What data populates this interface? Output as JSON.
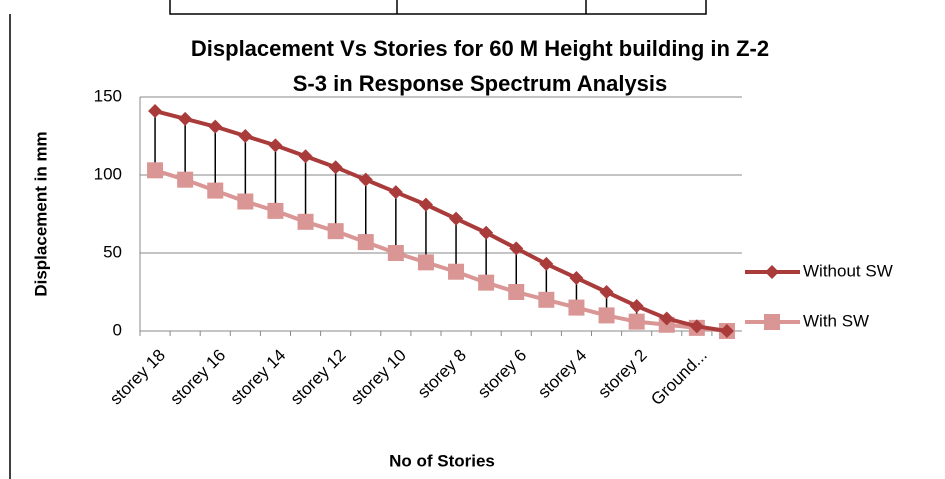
{
  "chart_data": {
    "type": "line",
    "title": [
      "Displacement Vs Stories for 60 M Height building in Z-2",
      "S-3 in Response Spectrum Analysis"
    ],
    "x_label": "No of Stories",
    "y_label": "Displacement in mm",
    "categories": [
      "storey 18",
      null,
      "storey 16",
      null,
      "storey 14",
      null,
      "storey 12",
      null,
      "storey 10",
      null,
      "storey 8",
      null,
      "storey 6",
      null,
      "storey 4",
      null,
      "storey 2",
      null,
      "Ground...",
      null
    ],
    "series": [
      {
        "name": "Without SW",
        "color": "#aa3b3b",
        "marker": "diamond",
        "values": [
          141,
          136,
          131,
          125,
          119,
          112,
          105,
          97,
          89,
          81,
          72,
          63,
          53,
          43,
          34,
          25,
          16,
          8,
          3,
          0
        ]
      },
      {
        "name": "With SW",
        "color": "#d99694",
        "marker": "square",
        "values": [
          103,
          97,
          90,
          83,
          77,
          70,
          64,
          57,
          50,
          44,
          38,
          31,
          25,
          20,
          15,
          10,
          6,
          4,
          2,
          0
        ]
      }
    ],
    "ylim": [
      0,
      150
    ],
    "yticks": [
      0,
      50,
      100,
      150
    ],
    "grid": true,
    "high_low_lines": true,
    "legend": "right"
  }
}
